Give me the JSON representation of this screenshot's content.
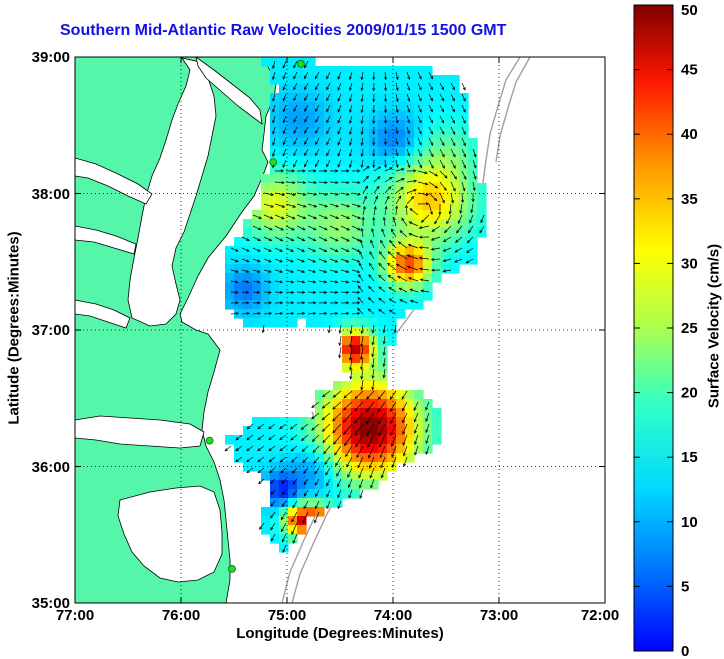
{
  "title": "Southern Mid-Atlantic Raw Velocities 2009/01/15 1500 GMT",
  "xlabel": "Longitude (Degrees:Minutes)",
  "ylabel": "Latitude (Degrees:Minutes)",
  "colorbar": {
    "label": "Surface Velocity (cm/s)",
    "min": 0,
    "max": 50,
    "ticks": [
      "0",
      "5",
      "10",
      "15",
      "20",
      "25",
      "30",
      "35",
      "40",
      "45",
      "50"
    ],
    "colormap": "jet"
  },
  "axes": {
    "xlim": [
      -77,
      -72
    ],
    "ylim": [
      35,
      39
    ],
    "xticks": [
      "77:00",
      "76:00",
      "75:00",
      "74:00",
      "73:00",
      "72:00"
    ],
    "yticks": [
      "35:00",
      "36:00",
      "37:00",
      "38:00",
      "39:00"
    ],
    "grid": "dotted"
  },
  "colors": {
    "land": "#55f5aa",
    "coastline": "#000000",
    "bathymetry": "#a0a0a0",
    "title": "#1212e6",
    "station": "#22dd22"
  },
  "stations": [
    {
      "lon": -74.87,
      "lat": 38.95
    },
    {
      "lon": -75.13,
      "lat": 38.23
    },
    {
      "lon": -75.73,
      "lat": 36.19
    },
    {
      "lon": -75.52,
      "lat": 35.25
    }
  ]
}
